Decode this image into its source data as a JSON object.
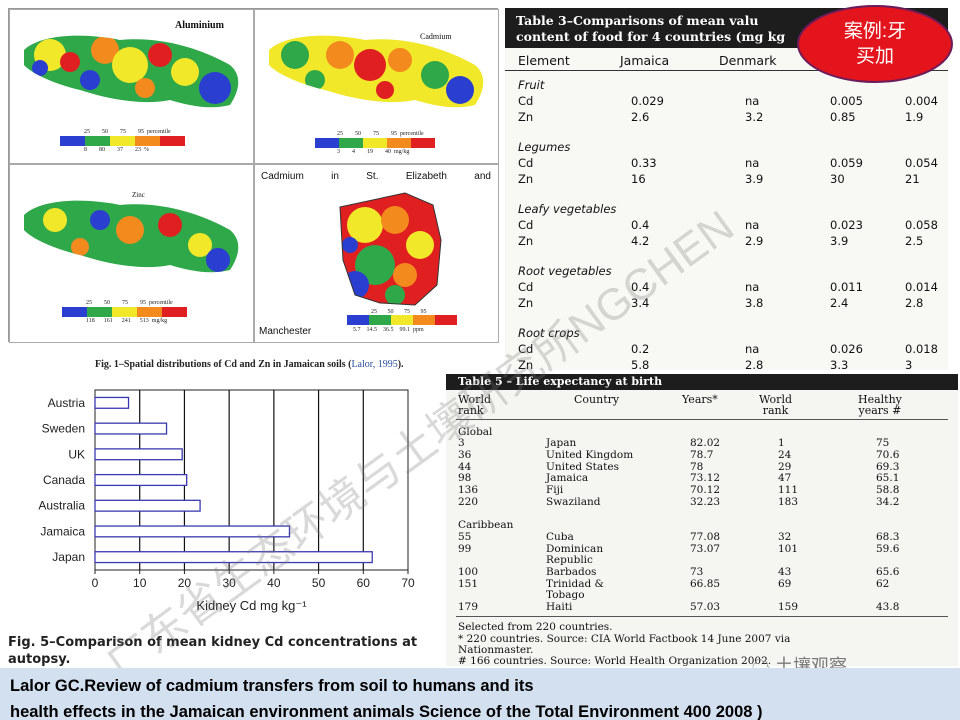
{
  "maps": {
    "aluminium_title": "Aluminium",
    "cadmium_title": "Cadmium",
    "zinc_title": "Zinc",
    "region_title_words": [
      "Cadmium",
      "in",
      "St.",
      "Elizabeth",
      "and"
    ],
    "region_footer": "Manchester",
    "legend1_top": [
      "25",
      "50",
      "75",
      "95",
      "percentile"
    ],
    "legend1_bottom": [
      "8",
      "80",
      "37",
      "23",
      "%"
    ],
    "legend2_top": [
      "25",
      "50",
      "75",
      "95",
      "percentile"
    ],
    "legend2_bottom": [
      "3",
      "4",
      "19",
      "40",
      "mg/kg"
    ],
    "legend3_top": [
      "25",
      "50",
      "75",
      "95",
      "percentile"
    ],
    "legend3_bottom": [
      "118",
      "161",
      "241",
      "513",
      "mg/kg"
    ],
    "legend4_top": [
      "25",
      "50",
      "75",
      "95"
    ],
    "legend4_bottom": [
      "5.7",
      "14.5",
      "36.5",
      "99.1",
      "ppm"
    ],
    "legend_colors": [
      "#2a3fd0",
      "#2fa84a",
      "#f2e82a",
      "#f28a1e",
      "#e02020"
    ]
  },
  "fig1_caption_pre": "Fig. 1–Spatial distributions of Cd and Zn in Jamaican soils (",
  "fig1_caption_ref": "Lalor, 1995",
  "fig1_caption_post": ").",
  "table3": {
    "title_line1": "Table 3–Comparisons of mean valu",
    "title_line2": "content of food for 4 countries (mg kg",
    "columns": [
      "Element",
      "Jamaica",
      "Denmark"
    ],
    "groups": [
      {
        "name": "Fruit",
        "rows": [
          [
            "Cd",
            "0.029",
            "na",
            "0.005",
            "0.004"
          ],
          [
            "Zn",
            "2.6",
            "3.2",
            "0.85",
            "1.9"
          ]
        ]
      },
      {
        "name": "Legumes",
        "rows": [
          [
            "Cd",
            "0.33",
            "na",
            "0.059",
            "0.054"
          ],
          [
            "Zn",
            "16",
            "3.9",
            "30",
            "21"
          ]
        ]
      },
      {
        "name": "Leafy vegetables",
        "rows": [
          [
            "Cd",
            "0.4",
            "na",
            "0.023",
            "0.058"
          ],
          [
            "Zn",
            "4.2",
            "2.9",
            "3.9",
            "2.5"
          ]
        ]
      },
      {
        "name": "Root vegetables",
        "rows": [
          [
            "Cd",
            "0.4",
            "na",
            "0.011",
            "0.014"
          ],
          [
            "Zn",
            "3.4",
            "3.8",
            "2.4",
            "2.8"
          ]
        ]
      },
      {
        "name": "Root crops",
        "rows": [
          [
            "Cd",
            "0.2",
            "na",
            "0.026",
            "0.018"
          ],
          [
            "Zn",
            "5.8",
            "2.8",
            "3.3",
            "3"
          ]
        ]
      }
    ]
  },
  "table5": {
    "title": "Table 5 – Life expectancy at birth",
    "head_world_rank": [
      "World",
      "rank"
    ],
    "head_country": "Country",
    "head_years": "Years*",
    "head_world_rank2": [
      "World",
      "rank"
    ],
    "head_healthy": [
      "Healthy",
      "years #"
    ],
    "global_label": "Global",
    "global_rows": [
      [
        "3",
        "Japan",
        "82.02",
        "1",
        "75"
      ],
      [
        "36",
        "United Kingdom",
        "78.7",
        "24",
        "70.6"
      ],
      [
        "44",
        "United States",
        "78",
        "29",
        "69.3"
      ],
      [
        "98",
        "Jamaica",
        "73.12",
        "47",
        "65.1"
      ],
      [
        "136",
        "Fiji",
        "70.12",
        "111",
        "58.8"
      ],
      [
        "220",
        "Swaziland",
        "32.23",
        "183",
        "34.2"
      ]
    ],
    "caribbean_label": "Caribbean",
    "caribbean_rows": [
      [
        "55",
        "Cuba",
        "",
        "77.08",
        "32",
        "68.3"
      ],
      [
        "99",
        "Dominican",
        "Republic",
        "73.07",
        "101",
        "59.6"
      ],
      [
        "100",
        "Barbados",
        "",
        "73",
        "43",
        "65.6"
      ],
      [
        "151",
        "Trinidad &",
        "Tobago",
        "66.85",
        "69",
        "62"
      ],
      [
        "179",
        "Haiti",
        "",
        "57.03",
        "159",
        "43.8"
      ]
    ],
    "notes": [
      "Selected from 220 countries.",
      "* 220 countries. Source: CIA World Factbook 14 June 2007 via",
      "Nationmaster.",
      "# 166 countries. Source: World Health Organization 2002."
    ]
  },
  "chart_data": {
    "type": "bar",
    "orientation": "horizontal",
    "categories": [
      "Austria",
      "Sweden",
      "UK",
      "Canada",
      "Australia",
      "Jamaica",
      "Japan"
    ],
    "values": [
      7.5,
      16,
      19.5,
      20.5,
      23.5,
      43.5,
      62
    ],
    "xlabel": "Kidney Cd mg kg⁻¹",
    "xticks": [
      0,
      10,
      20,
      30,
      40,
      50,
      60,
      70
    ],
    "xlim": [
      0,
      70
    ],
    "grid": true,
    "bar_color": "#ffffff",
    "bar_edge": "#3a3ab0"
  },
  "fig5_caption_line1": "Fig. 5–Comparison of mean kidney Cd concentrations at",
  "fig5_caption_line2": "autopsy.",
  "banner_line1": "Lalor GC.Review of cadmium transfers from soil to humans and its",
  "banner_line2": "health effects in the Jamaican environment animals Science of the Total Environment 400 2008 )",
  "badge_line1": "案例:牙",
  "badge_line2": "买加",
  "watermark_diag": "广东省生态环境与土壤研究所NGCHEN",
  "wechat_logo": "土壤观察"
}
